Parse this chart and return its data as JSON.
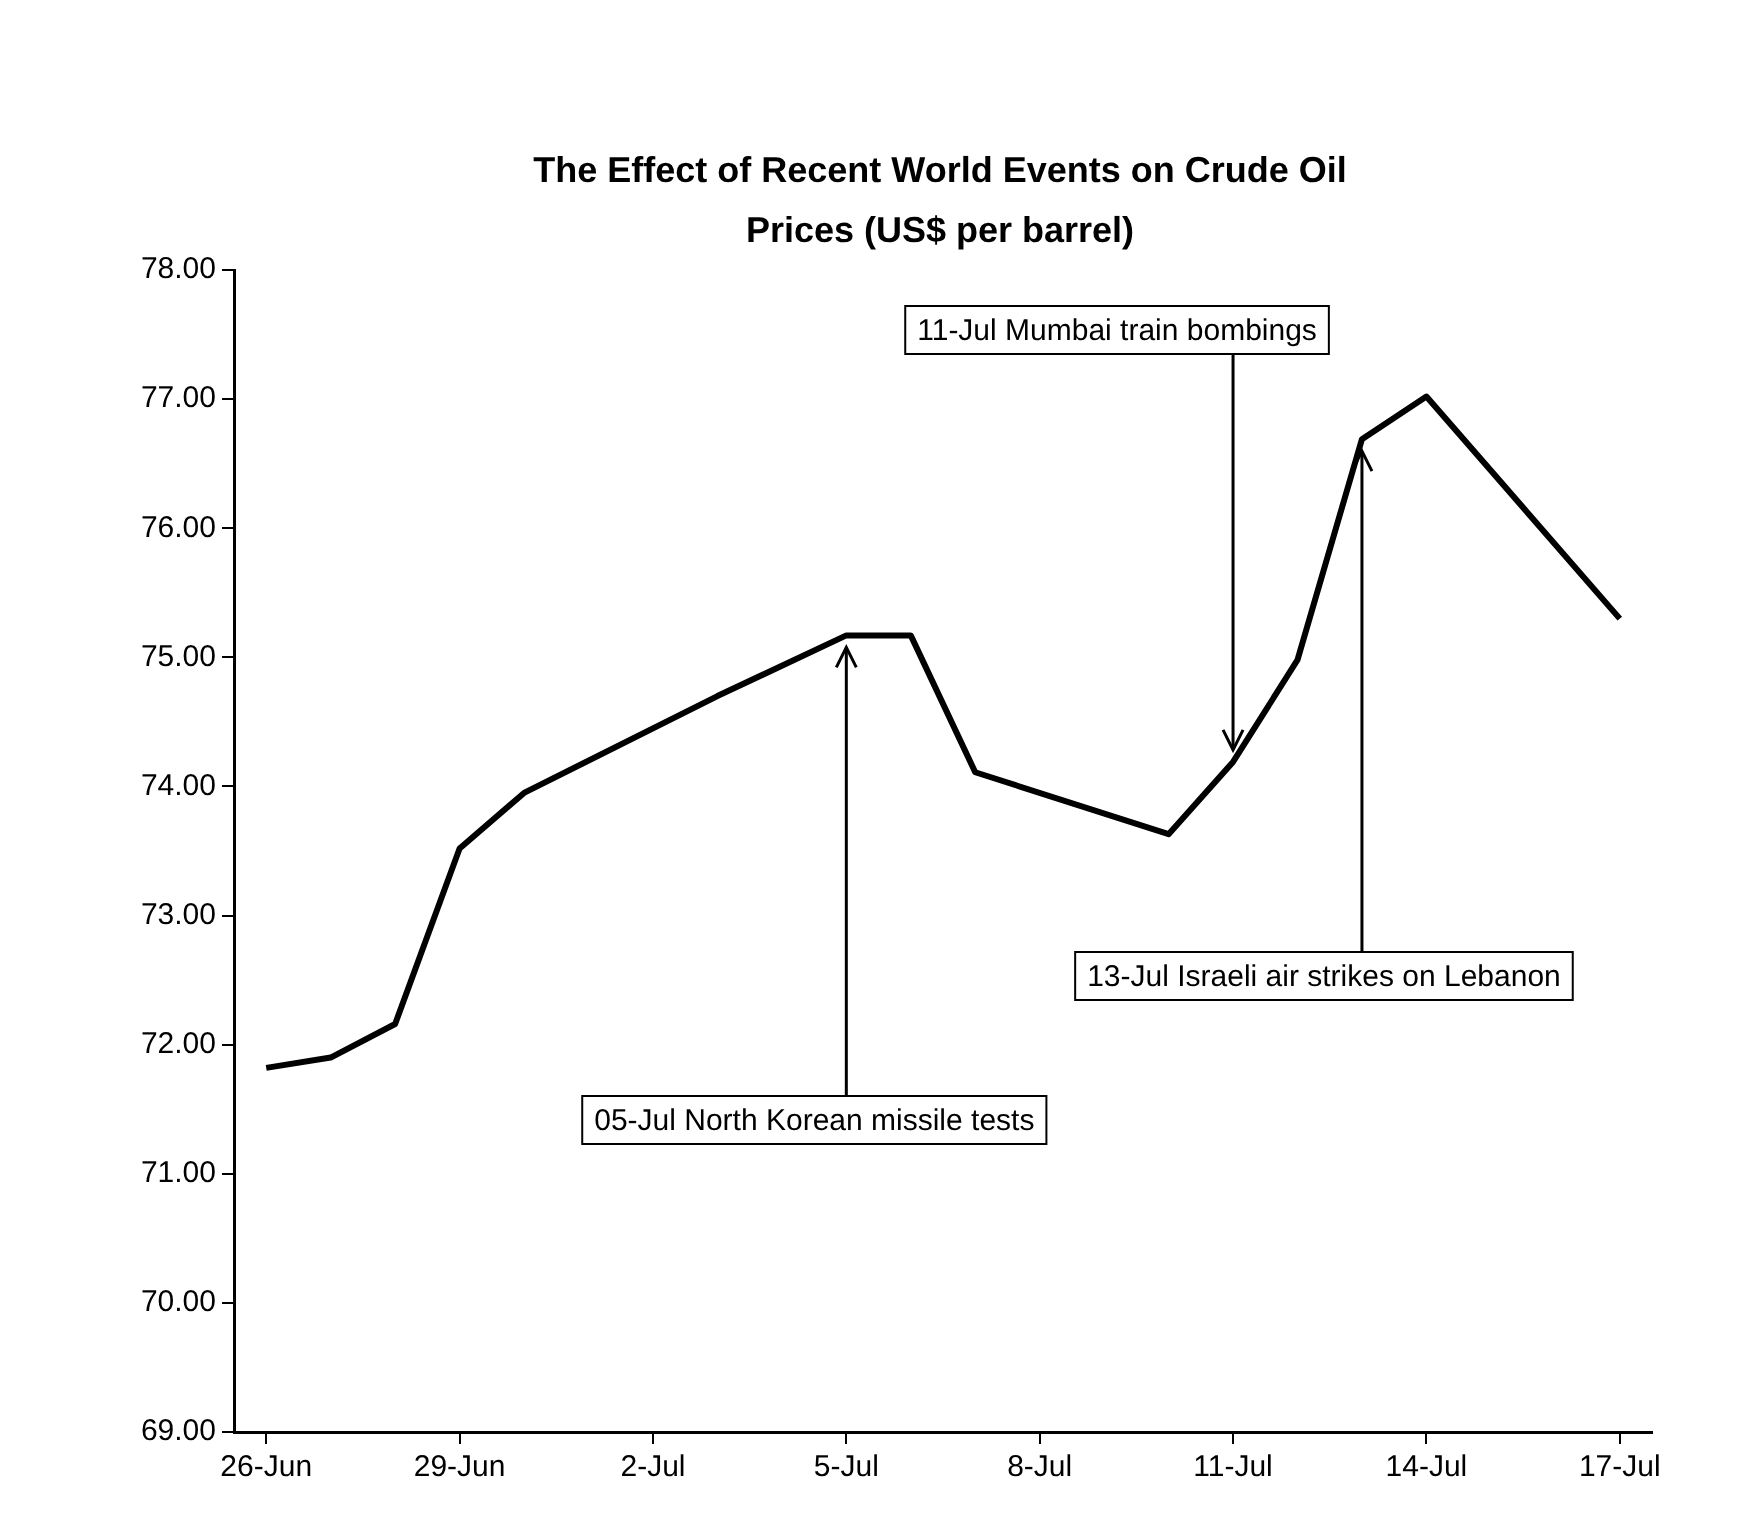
{
  "chart_data": {
    "type": "line",
    "title": "The Effect of Recent World Events on Crude Oil Prices (US$ per barrel)",
    "x": [
      "--06-26",
      "--06-27",
      "--06-28",
      "--06-29",
      "--06-30",
      "--07-03",
      "--07-05",
      "--07-06",
      "--07-07",
      "--07-10",
      "--07-11",
      "--07-12",
      "--07-13",
      "--07-14",
      "--07-17"
    ],
    "series": [
      {
        "color": "#000000",
        "values": [
          71.82,
          71.9,
          72.16,
          73.52,
          73.95,
          74.7,
          75.17,
          75.17,
          74.11,
          73.63,
          74.19,
          74.98,
          76.69,
          77.02,
          75.3
        ]
      }
    ],
    "xlim": [
      "--06-25T12:00",
      "--07-17T12:00"
    ],
    "xticks": [
      {
        "value": "--06-26",
        "label": "26-Jun"
      },
      {
        "value": "--06-29",
        "label": "29-Jun"
      },
      {
        "value": "--07-02",
        "label": "2-Jul"
      },
      {
        "value": "--07-05",
        "label": "5-Jul"
      },
      {
        "value": "--07-08",
        "label": "8-Jul"
      },
      {
        "value": "--07-11",
        "label": "11-Jul"
      },
      {
        "value": "--07-14",
        "label": "14-Jul"
      },
      {
        "value": "--07-17",
        "label": "17-Jul"
      }
    ],
    "ylim": [
      69,
      78
    ],
    "yticks": [
      {
        "value": 69,
        "label": "69.00"
      },
      {
        "value": 70,
        "label": "70.00"
      },
      {
        "value": 71,
        "label": "71.00"
      },
      {
        "value": 72,
        "label": "72.00"
      },
      {
        "value": 73,
        "label": "73.00"
      },
      {
        "value": 74,
        "label": "74.00"
      },
      {
        "value": 75,
        "label": "75.00"
      },
      {
        "value": 76,
        "label": "76.00"
      },
      {
        "value": 77,
        "label": "77.00"
      },
      {
        "value": 78,
        "label": "78.00"
      }
    ],
    "annotations": [
      {
        "text": "05-Jul North Korean missile tests",
        "x": "--07-05",
        "y": 75.17
      },
      {
        "text": "11-Jul Mumbai train bombings",
        "x": "--07-11",
        "y": 74.19
      },
      {
        "text": "13-Jul Israeli air strikes on Lebanon",
        "x": "--07-13",
        "y": 76.69
      }
    ],
    "grid": false,
    "legend": false,
    "marker": "none",
    "line_style": "solid"
  }
}
